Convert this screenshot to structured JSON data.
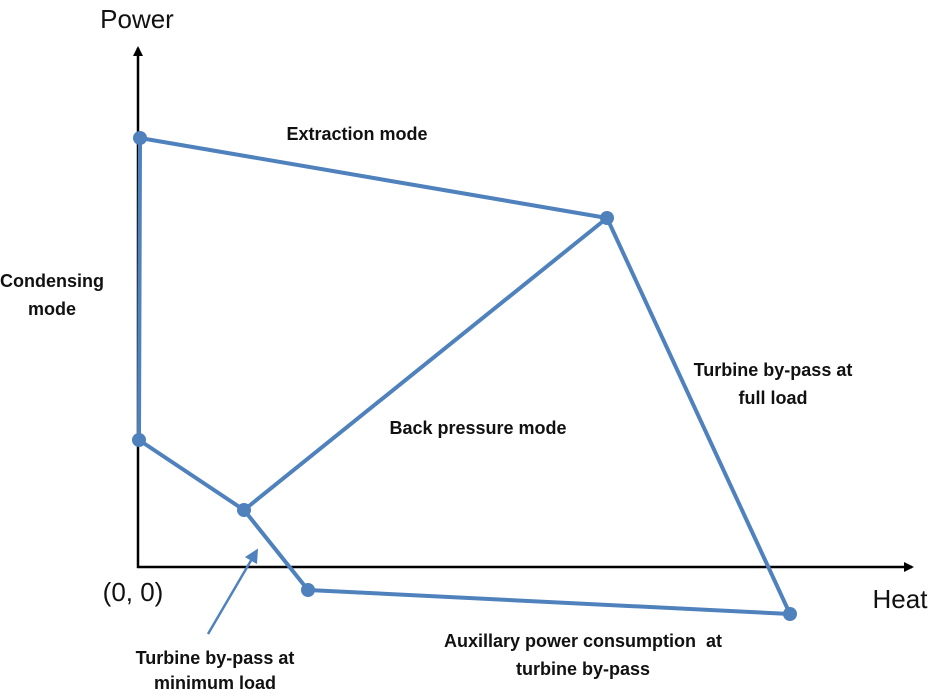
{
  "axes": {
    "y_label": "Power",
    "x_label": "Heat",
    "origin_label": "(0, 0)"
  },
  "labels": [
    {
      "lines": [
        "Extraction mode"
      ]
    },
    {
      "lines": [
        "Condensing",
        "mode"
      ]
    },
    {
      "lines": [
        "Back pressure mode"
      ]
    },
    {
      "lines": [
        "Turbine by-pass at",
        "full load"
      ]
    },
    {
      "lines": [
        "Auxillary power consumption  at",
        "turbine by-pass"
      ]
    },
    {
      "lines": [
        "Turbine by-pass at",
        "minimum load"
      ]
    }
  ]
}
